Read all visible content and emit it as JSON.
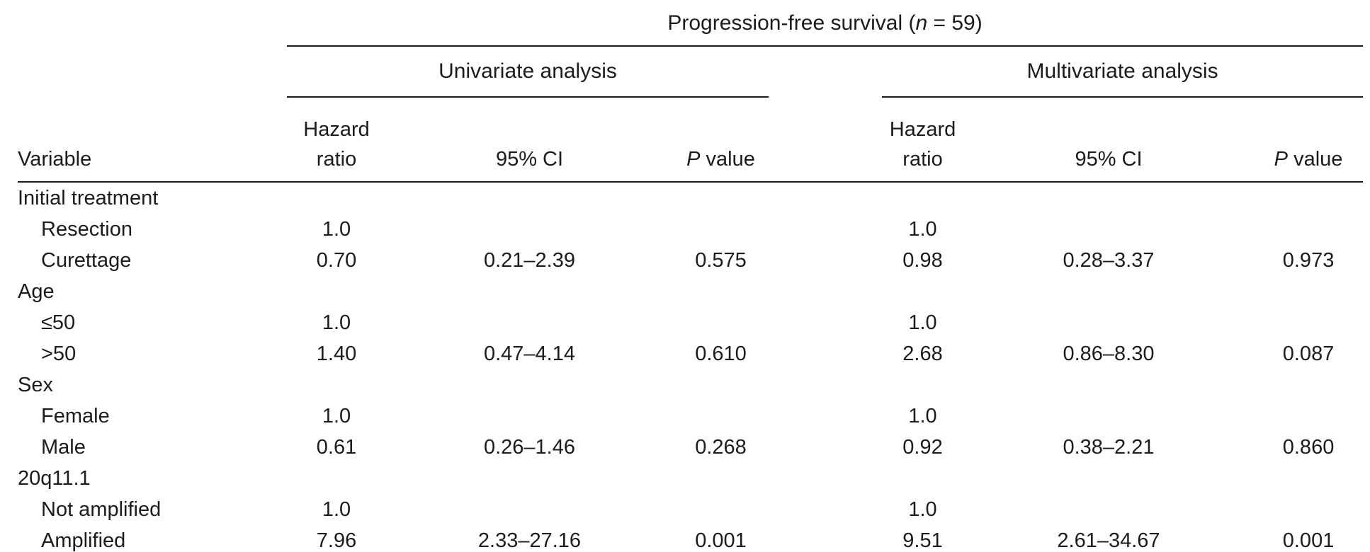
{
  "page": {
    "background": "#ffffff",
    "text_color": "#1c1c1e",
    "rule_color": "#1c1c1e"
  },
  "table": {
    "spanner": {
      "pre": "Progression-free survival (",
      "italic": "n",
      "post": " = 59)"
    },
    "groups": {
      "univariate": "Univariate analysis",
      "multivariate": "Multivariate analysis"
    },
    "columns": {
      "variable": "Variable",
      "hazard_line1": "Hazard",
      "hazard_line2": "ratio",
      "ci": "95% CI",
      "p_italic": "P",
      "p_rest": " value"
    },
    "rows": [
      {
        "label": "Initial treatment",
        "indent": false
      },
      {
        "label": "Resection",
        "indent": true,
        "u_hr": "1.0",
        "m_hr": "1.0"
      },
      {
        "label": "Curettage",
        "indent": true,
        "u_hr": "0.70",
        "u_ci": "0.21–2.39",
        "u_p": "0.575",
        "m_hr": "0.98",
        "m_ci": "0.28–3.37",
        "m_p": "0.973"
      },
      {
        "label": "Age",
        "indent": false
      },
      {
        "label": "≤50",
        "indent": true,
        "u_hr": "1.0",
        "m_hr": "1.0"
      },
      {
        "label": ">50",
        "indent": true,
        "u_hr": "1.40",
        "u_ci": "0.47–4.14",
        "u_p": "0.610",
        "m_hr": "2.68",
        "m_ci": "0.86–8.30",
        "m_p": "0.087"
      },
      {
        "label": "Sex",
        "indent": false
      },
      {
        "label": "Female",
        "indent": true,
        "u_hr": "1.0",
        "m_hr": "1.0"
      },
      {
        "label": "Male",
        "indent": true,
        "u_hr": "0.61",
        "u_ci": "0.26–1.46",
        "u_p": "0.268",
        "m_hr": "0.92",
        "m_ci": "0.38–2.21",
        "m_p": "0.860"
      },
      {
        "label": "20q11.1",
        "indent": false
      },
      {
        "label": "Not amplified",
        "indent": true,
        "u_hr": "1.0",
        "m_hr": "1.0"
      },
      {
        "label": "Amplified",
        "indent": true,
        "u_hr": "7.96",
        "u_ci": "2.33–27.16",
        "u_p": "0.001",
        "m_hr": "9.51",
        "m_ci": "2.61–34.67",
        "m_p": "0.001"
      }
    ]
  }
}
